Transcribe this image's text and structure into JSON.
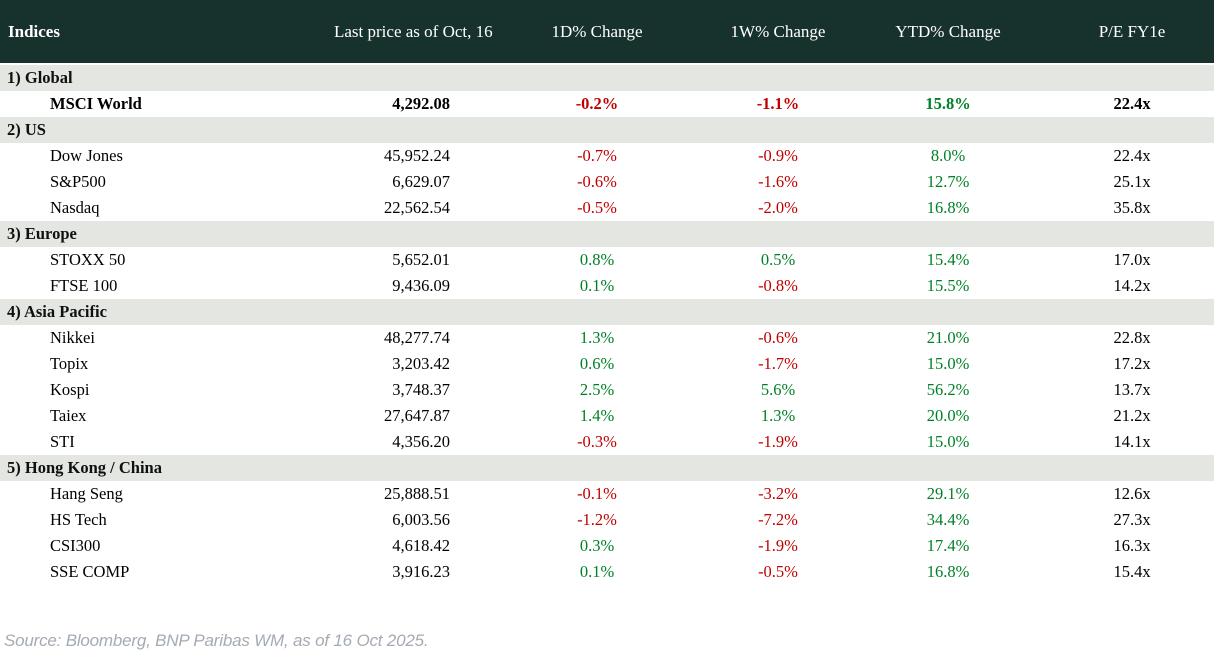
{
  "chart_data": {
    "type": "table",
    "title": "Indices",
    "columns": [
      "Indices",
      "Last price as of Oct, 16",
      "1D% Change",
      "1W% Change",
      "YTD% Change",
      "P/E FY1e"
    ],
    "sections": [
      {
        "label": "1) Global",
        "rows": [
          {
            "name": "MSCI World",
            "price": "4,292.08",
            "d1": "-0.2%",
            "w1": "-1.1%",
            "ytd": "15.8%",
            "pe": "22.4x",
            "emphasis": true
          }
        ]
      },
      {
        "label": "2) US",
        "rows": [
          {
            "name": "Dow Jones",
            "price": "45,952.24",
            "d1": "-0.7%",
            "w1": "-0.9%",
            "ytd": "8.0%",
            "pe": "22.4x",
            "emphasis": false
          },
          {
            "name": "S&P500",
            "price": "6,629.07",
            "d1": "-0.6%",
            "w1": "-1.6%",
            "ytd": "12.7%",
            "pe": "25.1x",
            "emphasis": false
          },
          {
            "name": "Nasdaq",
            "price": "22,562.54",
            "d1": "-0.5%",
            "w1": "-2.0%",
            "ytd": "16.8%",
            "pe": "35.8x",
            "emphasis": false
          }
        ]
      },
      {
        "label": "3) Europe",
        "rows": [
          {
            "name": "STOXX 50",
            "price": "5,652.01",
            "d1": "0.8%",
            "w1": "0.5%",
            "ytd": "15.4%",
            "pe": "17.0x",
            "emphasis": false
          },
          {
            "name": "FTSE 100",
            "price": "9,436.09",
            "d1": "0.1%",
            "w1": "-0.8%",
            "ytd": "15.5%",
            "pe": "14.2x",
            "emphasis": false
          }
        ]
      },
      {
        "label": "4) Asia Pacific",
        "rows": [
          {
            "name": "Nikkei",
            "price": "48,277.74",
            "d1": "1.3%",
            "w1": "-0.6%",
            "ytd": "21.0%",
            "pe": "22.8x",
            "emphasis": false
          },
          {
            "name": "Topix",
            "price": "3,203.42",
            "d1": "0.6%",
            "w1": "-1.7%",
            "ytd": "15.0%",
            "pe": "17.2x",
            "emphasis": false
          },
          {
            "name": "Kospi",
            "price": "3,748.37",
            "d1": "2.5%",
            "w1": "5.6%",
            "ytd": "56.2%",
            "pe": "13.7x",
            "emphasis": false
          },
          {
            "name": "Taiex",
            "price": "27,647.87",
            "d1": "1.4%",
            "w1": "1.3%",
            "ytd": "20.0%",
            "pe": "21.2x",
            "emphasis": false
          },
          {
            "name": "STI",
            "price": "4,356.20",
            "d1": "-0.3%",
            "w1": "-1.9%",
            "ytd": "15.0%",
            "pe": "14.1x",
            "emphasis": false
          }
        ]
      },
      {
        "label": "5) Hong Kong / China",
        "rows": [
          {
            "name": "Hang Seng",
            "price": "25,888.51",
            "d1": "-0.1%",
            "w1": "-3.2%",
            "ytd": "29.1%",
            "pe": "12.6x",
            "emphasis": false
          },
          {
            "name": "HS Tech",
            "price": "6,003.56",
            "d1": "-1.2%",
            "w1": "-7.2%",
            "ytd": "34.4%",
            "pe": "27.3x",
            "emphasis": false
          },
          {
            "name": "CSI300",
            "price": "4,618.42",
            "d1": "0.3%",
            "w1": "-1.9%",
            "ytd": "17.4%",
            "pe": "16.3x",
            "emphasis": false
          },
          {
            "name": "SSE COMP",
            "price": "3,916.23",
            "d1": "0.1%",
            "w1": "-0.5%",
            "ytd": "16.8%",
            "pe": "15.4x",
            "emphasis": false
          }
        ]
      }
    ],
    "layout": {
      "grid": false,
      "legend": "none"
    }
  },
  "footer": {
    "source": "Source: Bloomberg, BNP Paribas WM, as of 16 Oct 2025."
  },
  "colors": {
    "header_bg": "#17322c",
    "header_text": "#ffffff",
    "section_bg": "#e4e6e2",
    "positive": "#008026",
    "negative": "#c00000",
    "source_text": "#a4abb3"
  }
}
